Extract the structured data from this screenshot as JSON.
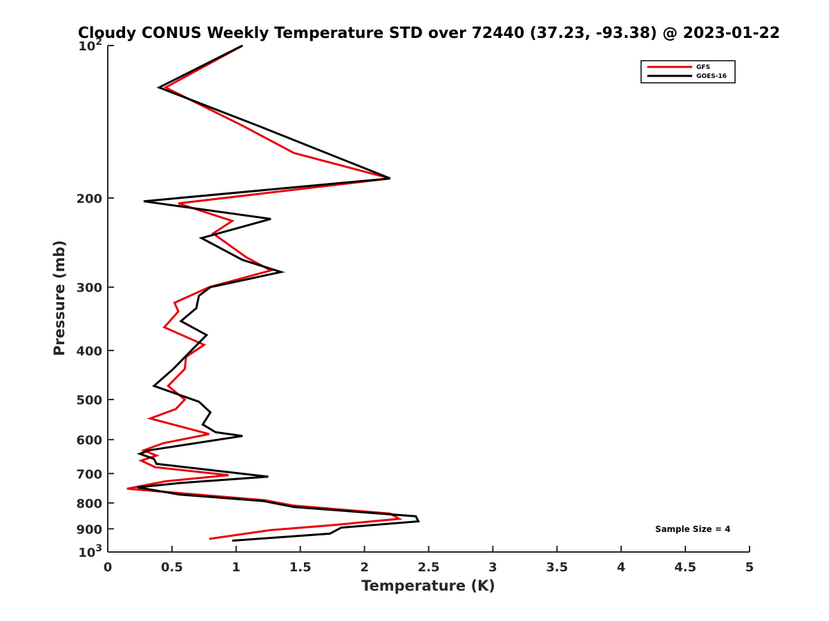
{
  "chart_data": {
    "type": "line",
    "title": "Cloudy CONUS Weekly Temperature STD over 72440 (37.23, -93.38) @ 2023-01-22",
    "xlabel": "Temperature (K)",
    "ylabel": "Pressure (mb)",
    "xlim": [
      0,
      5
    ],
    "ylim": [
      100,
      1000
    ],
    "yscale": "log",
    "y_reversed": true,
    "x_ticks": [
      "0",
      "0.5",
      "1",
      "1.5",
      "2",
      "2.5",
      "3",
      "3.5",
      "4",
      "4.5",
      "5"
    ],
    "y_ticks": [
      {
        "value": 100,
        "base": "10",
        "exp": "2"
      },
      {
        "value": 200,
        "label": "200"
      },
      {
        "value": 300,
        "label": "300"
      },
      {
        "value": 400,
        "label": "400"
      },
      {
        "value": 500,
        "label": "500"
      },
      {
        "value": 600,
        "label": "600"
      },
      {
        "value": 700,
        "label": "700"
      },
      {
        "value": 800,
        "label": "800"
      },
      {
        "value": 900,
        "label": "900"
      },
      {
        "value": 1000,
        "base": "10",
        "exp": "3"
      }
    ],
    "legend_position": "top-right",
    "annotation": "Sample Size = 4",
    "series": [
      {
        "name": "GFS",
        "color": "#e8000b",
        "x": [
          1.05,
          0.45,
          1.05,
          1.45,
          2.2,
          0.55,
          0.97,
          0.82,
          1.08,
          1.27,
          0.79,
          0.52,
          0.55,
          0.44,
          0.75,
          0.61,
          0.6,
          0.47,
          0.6,
          0.53,
          0.33,
          0.79,
          0.43,
          0.28,
          0.38,
          0.26,
          0.37,
          0.94,
          0.45,
          0.15,
          1.22,
          1.45,
          2.2,
          2.27,
          1.75,
          1.27,
          0.79
        ],
        "y": [
          100,
          121,
          144,
          163,
          183,
          205,
          222,
          235,
          262,
          278,
          300,
          322,
          335,
          360,
          390,
          412,
          435,
          470,
          500,
          522,
          545,
          585,
          610,
          630,
          645,
          660,
          680,
          705,
          725,
          750,
          790,
          810,
          840,
          860,
          885,
          905,
          942
        ]
      },
      {
        "name": "GOES-16",
        "color": "#000000",
        "x": [
          1.05,
          0.4,
          1.2,
          2.2,
          0.28,
          1.27,
          0.73,
          1.05,
          1.35,
          0.8,
          0.71,
          0.69,
          0.57,
          0.77,
          0.63,
          0.51,
          0.36,
          0.71,
          0.8,
          0.74,
          0.84,
          1.05,
          0.32,
          0.25,
          0.36,
          0.38,
          1.25,
          0.58,
          0.23,
          0.56,
          1.21,
          1.45,
          2.4,
          2.42,
          1.82,
          1.73,
          0.97
        ],
        "y": [
          100,
          121,
          145,
          183,
          203,
          220,
          240,
          265,
          280,
          300,
          312,
          330,
          350,
          373,
          405,
          435,
          470,
          505,
          530,
          560,
          580,
          590,
          630,
          640,
          655,
          670,
          710,
          730,
          745,
          770,
          793,
          815,
          850,
          870,
          895,
          920,
          950
        ]
      }
    ]
  }
}
